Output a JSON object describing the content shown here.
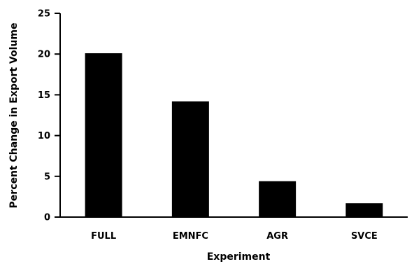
{
  "chart_data": {
    "type": "bar",
    "categories": [
      "FULL",
      "EMNFC",
      "AGR",
      "SVCE"
    ],
    "values": [
      20.1,
      14.2,
      4.4,
      1.7
    ],
    "xlabel": "Experiment",
    "ylabel": "Percent Change in Export Volume",
    "ylim": [
      0,
      25
    ],
    "yticks": [
      0,
      5,
      10,
      15,
      20,
      25
    ],
    "grid": false,
    "legend": "none",
    "bar_color": "#000000"
  }
}
